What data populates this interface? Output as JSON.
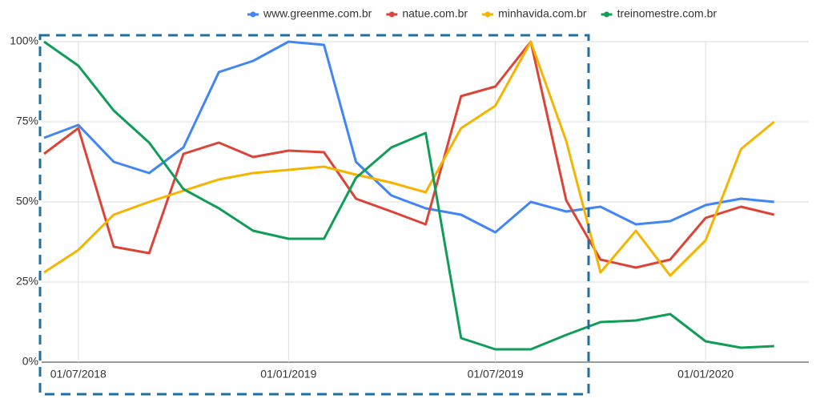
{
  "chart_data": {
    "type": "line",
    "x": [
      "2018-06-01",
      "2018-07-01",
      "2018-08-01",
      "2018-09-01",
      "2018-10-01",
      "2018-11-01",
      "2018-12-01",
      "2019-01-01",
      "2019-02-01",
      "2019-03-01",
      "2019-04-01",
      "2019-05-01",
      "2019-06-01",
      "2019-07-01",
      "2019-08-01",
      "2019-09-01",
      "2019-10-01",
      "2019-11-01",
      "2019-12-01",
      "2020-01-01",
      "2020-02-01",
      "2020-03-01"
    ],
    "series": [
      {
        "name": "www.greenme.com.br",
        "color": "#4285f4",
        "values": [
          70,
          74,
          62.5,
          59,
          67,
          90.5,
          94,
          100,
          99,
          62.5,
          52,
          48,
          46,
          40.5,
          50,
          47,
          48.5,
          43,
          44,
          49,
          51,
          50
        ]
      },
      {
        "name": "natue.com.br",
        "color": "#db4437",
        "values": [
          65,
          73,
          36,
          34,
          65,
          68.5,
          64,
          66,
          65.5,
          51,
          47,
          43,
          83,
          86,
          100,
          50.5,
          32,
          29.5,
          32,
          45,
          48.5,
          46
        ]
      },
      {
        "name": "minhavida.com.br",
        "color": "#f4b400",
        "values": [
          28,
          35,
          46,
          50,
          53.5,
          57,
          59,
          60,
          61,
          58.5,
          56,
          53,
          73,
          80,
          100,
          69,
          28,
          41,
          27,
          38,
          66.5,
          75
        ]
      },
      {
        "name": "treinomestre.com.br",
        "color": "#0f9d58",
        "values": [
          100,
          92.5,
          78.5,
          68.5,
          54,
          48,
          41,
          38.5,
          38.5,
          57.5,
          67,
          71.5,
          7.5,
          4,
          4,
          8.5,
          12.5,
          13,
          15,
          6.5,
          4.5,
          5
        ]
      }
    ],
    "xlim": [
      "2018-06-01",
      "2020-04-01"
    ],
    "xticks": [
      {
        "value": "2018-07-01",
        "label": "01/07/2018"
      },
      {
        "value": "2019-01-01",
        "label": "01/01/2019"
      },
      {
        "value": "2019-07-01",
        "label": "01/07/2019"
      },
      {
        "value": "2020-01-01",
        "label": "01/01/2020"
      }
    ],
    "ylim": [
      0,
      100
    ],
    "yticks": [
      {
        "value": 0,
        "label": "0%"
      },
      {
        "value": 25,
        "label": "25%"
      },
      {
        "value": 50,
        "label": "50%"
      },
      {
        "value": 75,
        "label": "75%"
      },
      {
        "value": 100,
        "label": "100%"
      }
    ],
    "grid": true,
    "legend": "top"
  }
}
